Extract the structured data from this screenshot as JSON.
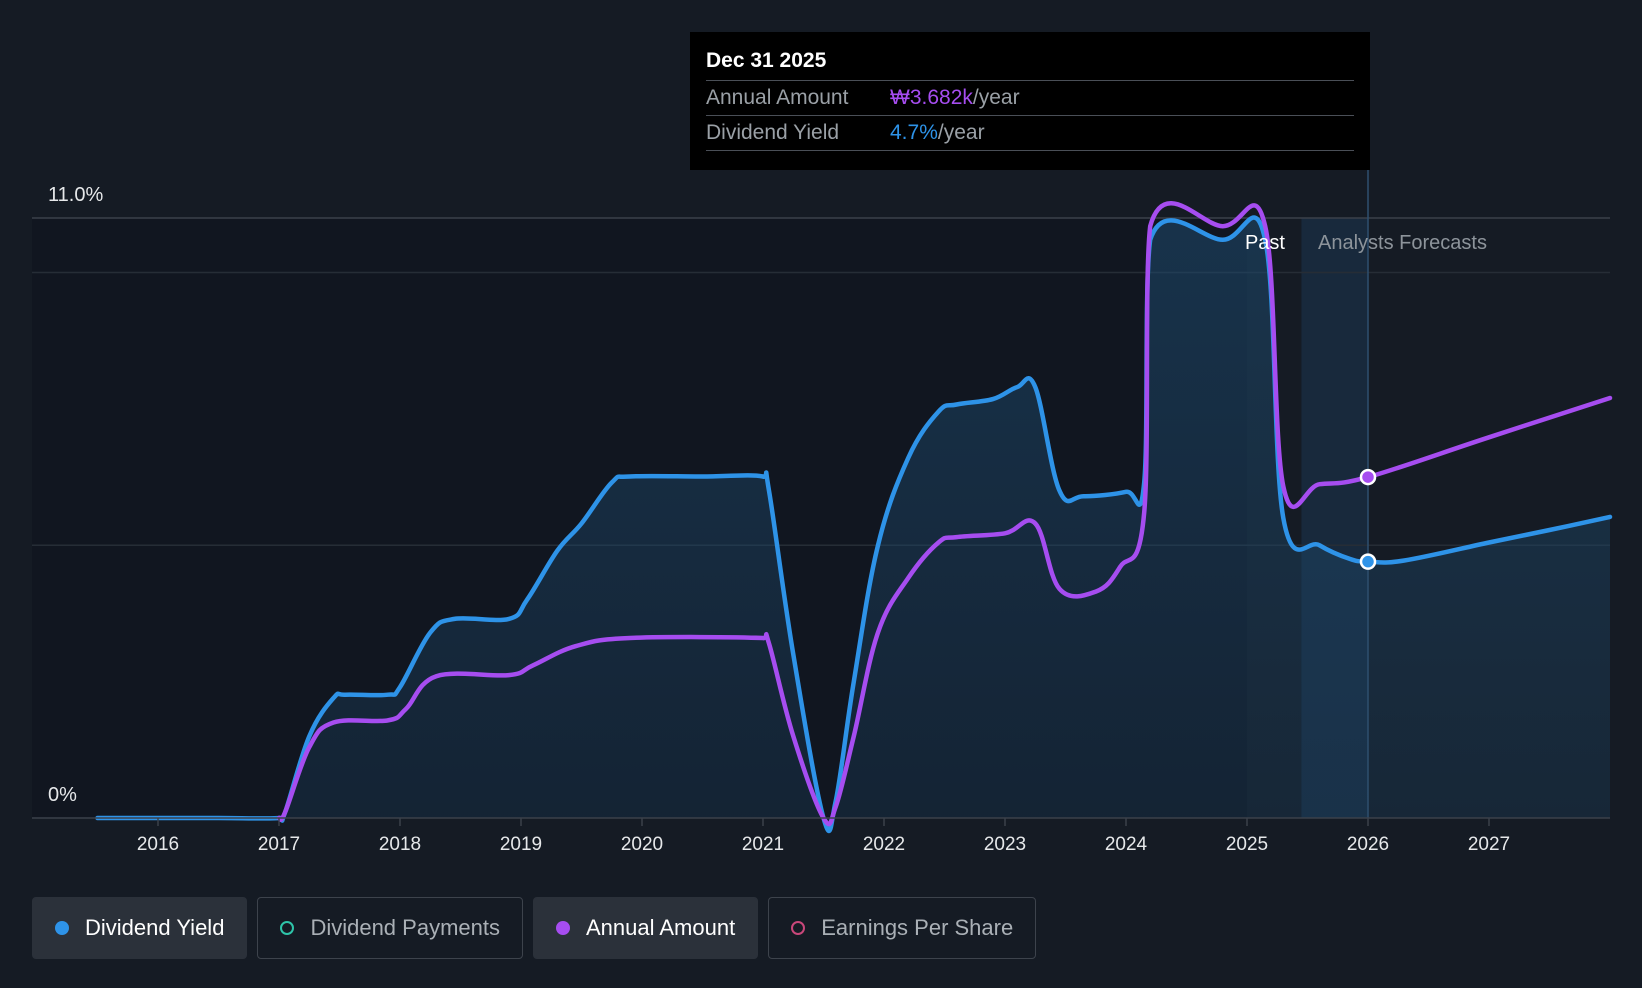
{
  "chart_data": {
    "type": "line",
    "y_axis": {
      "min_label": "0%",
      "max_label": "11.0%",
      "ylim": [
        0,
        11.0
      ]
    },
    "x_ticks": [
      "2016",
      "2017",
      "2018",
      "2019",
      "2020",
      "2021",
      "2022",
      "2023",
      "2024",
      "2025",
      "2026",
      "2027"
    ],
    "xlim": [
      2015.0,
      2028.0
    ],
    "regions": {
      "past_label": "Past",
      "forecast_label": "Analysts Forecasts",
      "past_end": 2025.0,
      "forecast_start": 2025.45,
      "cursor_x": 2026.0
    },
    "series": [
      {
        "name": "Dividend Yield",
        "color": "#2e93e8",
        "points": [
          [
            2015.5,
            0
          ],
          [
            2016.0,
            0
          ],
          [
            2016.5,
            0
          ],
          [
            2017.0,
            0
          ],
          [
            2017.05,
            0.1
          ],
          [
            2017.25,
            1.5
          ],
          [
            2017.45,
            2.2
          ],
          [
            2017.55,
            2.26
          ],
          [
            2017.9,
            2.26
          ],
          [
            2018.0,
            2.4
          ],
          [
            2018.25,
            3.4
          ],
          [
            2018.45,
            3.65
          ],
          [
            2018.9,
            3.65
          ],
          [
            2019.05,
            4.0
          ],
          [
            2019.3,
            4.9
          ],
          [
            2019.5,
            5.4
          ],
          [
            2019.75,
            6.15
          ],
          [
            2019.9,
            6.26
          ],
          [
            2020.5,
            6.26
          ],
          [
            2021.0,
            6.26
          ],
          [
            2021.05,
            6.0
          ],
          [
            2021.25,
            3.0
          ],
          [
            2021.5,
            0
          ],
          [
            2021.6,
            0.3
          ],
          [
            2021.75,
            2.5
          ],
          [
            2021.95,
            5.0
          ],
          [
            2022.2,
            6.6
          ],
          [
            2022.45,
            7.45
          ],
          [
            2022.6,
            7.58
          ],
          [
            2022.9,
            7.68
          ],
          [
            2023.1,
            7.9
          ],
          [
            2023.25,
            7.9
          ],
          [
            2023.45,
            6.0
          ],
          [
            2023.65,
            5.9
          ],
          [
            2024.0,
            5.98
          ],
          [
            2024.15,
            6.15
          ],
          [
            2024.2,
            10.6
          ],
          [
            2024.8,
            10.6
          ],
          [
            2025.15,
            10.6
          ],
          [
            2025.3,
            5.5
          ],
          [
            2025.6,
            5.0
          ],
          [
            2025.85,
            4.75
          ],
          [
            2026.0,
            4.7
          ],
          [
            2026.3,
            4.72
          ],
          [
            2027.0,
            5.05
          ],
          [
            2027.5,
            5.28
          ],
          [
            2028.0,
            5.52
          ]
        ]
      },
      {
        "name": "Annual Amount",
        "color": "#a64df0",
        "points": [
          [
            2017.0,
            0
          ],
          [
            2017.05,
            0.1
          ],
          [
            2017.25,
            1.3
          ],
          [
            2017.45,
            1.75
          ],
          [
            2017.9,
            1.79
          ],
          [
            2018.05,
            2.0
          ],
          [
            2018.3,
            2.6
          ],
          [
            2018.9,
            2.62
          ],
          [
            2019.1,
            2.8
          ],
          [
            2019.45,
            3.15
          ],
          [
            2019.9,
            3.3
          ],
          [
            2021.0,
            3.3
          ],
          [
            2021.05,
            3.2
          ],
          [
            2021.25,
            1.5
          ],
          [
            2021.5,
            0
          ],
          [
            2021.6,
            0.2
          ],
          [
            2021.75,
            1.5
          ],
          [
            2021.95,
            3.4
          ],
          [
            2022.2,
            4.4
          ],
          [
            2022.45,
            5.05
          ],
          [
            2022.6,
            5.15
          ],
          [
            2023.0,
            5.22
          ],
          [
            2023.25,
            5.4
          ],
          [
            2023.45,
            4.2
          ],
          [
            2023.75,
            4.15
          ],
          [
            2023.95,
            4.6
          ],
          [
            2024.15,
            5.6
          ],
          [
            2024.2,
            10.85
          ],
          [
            2024.8,
            10.85
          ],
          [
            2025.15,
            10.85
          ],
          [
            2025.3,
            6.08
          ],
          [
            2025.6,
            6.12
          ],
          [
            2026.0,
            6.25
          ],
          [
            2027.0,
            6.98
          ],
          [
            2028.0,
            7.7
          ]
        ]
      }
    ],
    "highlight_points": [
      {
        "series": "Annual Amount",
        "x": 2026.0,
        "y": 6.25
      },
      {
        "series": "Dividend Yield",
        "x": 2026.0,
        "y": 4.7
      }
    ]
  },
  "tooltip": {
    "date": "Dec 31 2025",
    "rows": [
      {
        "label": "Annual Amount",
        "value": "₩3.682k",
        "unit": "/year",
        "color": "#a64df0"
      },
      {
        "label": "Dividend Yield",
        "value": "4.7%",
        "unit": "/year",
        "color": "#2e93e8"
      }
    ]
  },
  "legend": [
    {
      "label": "Dividend Yield",
      "color": "#2e93e8",
      "active": true,
      "filled": true
    },
    {
      "label": "Dividend Payments",
      "color": "#2ec4a9",
      "active": false,
      "filled": false
    },
    {
      "label": "Annual Amount",
      "color": "#a64df0",
      "active": true,
      "filled": true
    },
    {
      "label": "Earnings Per Share",
      "color": "#c8477a",
      "active": false,
      "filled": false
    }
  ]
}
